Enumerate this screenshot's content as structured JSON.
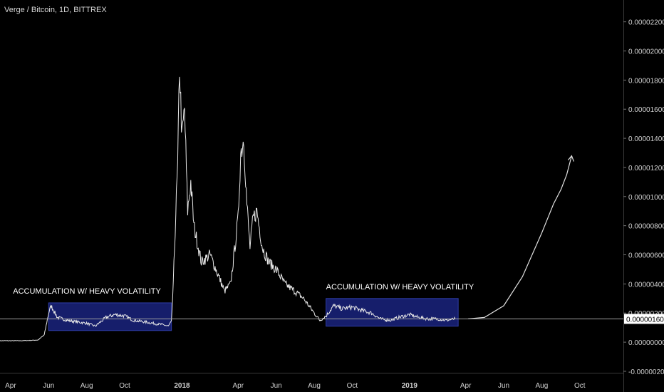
{
  "header": {
    "title": "Verge / Bitcoin, 1D, BITTREX"
  },
  "chart_data": {
    "type": "line",
    "title": "Verge / Bitcoin, 1D, BITTREX",
    "xlabel": "",
    "ylabel": "",
    "x_ticks": [
      "Apr",
      "Jun",
      "Aug",
      "Oct",
      "2018",
      "Apr",
      "Jun",
      "Aug",
      "Oct",
      "2019",
      "Apr",
      "Jun",
      "Aug",
      "Oct"
    ],
    "y_ticks": [
      "0.00002200",
      "0.00002000",
      "0.00001800",
      "0.00001600",
      "0.00001400",
      "0.00001200",
      "0.00001000",
      "0.00000800",
      "0.00000600",
      "0.00000400",
      "0.00000200",
      "0.00000000",
      "-0.00000200"
    ],
    "ylim": [
      -2.1e-06,
      2.35e-05
    ],
    "current_price_label": "0.00000160",
    "current_price": 1.6e-06,
    "grid": false,
    "series": [
      {
        "x": [
          "2017-03-15",
          "2017-04-01",
          "2017-04-15",
          "2017-05-01",
          "2017-05-15",
          "2017-05-25",
          "2017-06-01",
          "2017-06-05",
          "2017-06-15",
          "2017-07-01",
          "2017-07-15",
          "2017-08-01",
          "2017-08-15",
          "2017-09-01",
          "2017-09-15",
          "2017-10-01",
          "2017-10-15",
          "2017-11-01",
          "2017-11-15",
          "2017-12-01",
          "2017-12-10",
          "2017-12-15",
          "2017-12-18",
          "2017-12-22",
          "2017-12-25",
          "2017-12-28",
          "2018-01-01",
          "2018-01-05",
          "2018-01-10",
          "2018-01-15",
          "2018-01-20",
          "2018-02-01",
          "2018-02-15",
          "2018-03-01",
          "2018-03-10",
          "2018-03-20",
          "2018-04-01",
          "2018-04-05",
          "2018-04-10",
          "2018-04-15",
          "2018-04-20",
          "2018-04-25",
          "2018-05-01",
          "2018-05-10",
          "2018-05-20",
          "2018-06-01",
          "2018-06-15",
          "2018-07-01",
          "2018-07-15",
          "2018-08-01",
          "2018-08-10",
          "2018-08-20",
          "2018-09-01",
          "2018-09-15",
          "2018-10-01",
          "2018-10-15",
          "2018-11-01",
          "2018-11-15",
          "2018-12-01",
          "2018-12-15",
          "2019-01-01",
          "2019-01-15",
          "2019-02-01",
          "2019-02-15",
          "2019-03-01",
          "2019-03-15"
        ],
        "y": [
          1e-07,
          1e-07,
          1e-07,
          1.2e-07,
          1.5e-07,
          5e-07,
          2e-06,
          2.5e-06,
          1.7e-06,
          1.5e-06,
          1.4e-06,
          1.3e-06,
          1.1e-06,
          1.7e-06,
          1.9e-06,
          1.8e-06,
          1.5e-06,
          1.4e-06,
          1.3e-06,
          1.2e-06,
          1.1e-06,
          1.4e-06,
          4e-06,
          9e-06,
          1.2e-05,
          1.9e-05,
          1.4e-05,
          1.6e-05,
          9e-06,
          1.1e-05,
          8e-06,
          5.5e-06,
          6e-06,
          4.5e-06,
          3.5e-06,
          4e-06,
          8.5e-06,
          1.3e-05,
          1.4e-05,
          9.5e-06,
          6.5e-06,
          8.5e-06,
          9e-06,
          6.5e-06,
          5.5e-06,
          5e-06,
          4e-06,
          3.5e-06,
          3e-06,
          2e-06,
          1.5e-06,
          1.8e-06,
          2.5e-06,
          2.3e-06,
          2.4e-06,
          2.2e-06,
          2e-06,
          1.6e-06,
          1.5e-06,
          1.7e-06,
          1.9e-06,
          1.7e-06,
          1.6e-06,
          1.6e-06,
          1.5e-06,
          1.6e-06
        ]
      }
    ],
    "annotations": [
      {
        "text": "ACCUMULATION W/ HEAVY VOLATILITY",
        "x_start": "2017-06-01",
        "x_end": "2017-12-15",
        "y_low": 8e-07,
        "y_high": 2.7e-06
      },
      {
        "text": "ACCUMULATION W/ HEAVY VOLATILITY",
        "x_start": "2018-08-20",
        "x_end": "2019-03-20",
        "y_low": 1.1e-06,
        "y_high": 3e-06
      }
    ],
    "projection": {
      "x": [
        "2019-04-05",
        "2019-05-01",
        "2019-06-01",
        "2019-07-01",
        "2019-08-01",
        "2019-08-20",
        "2019-09-01",
        "2019-09-10",
        "2019-09-18"
      ],
      "y": [
        1.6e-06,
        1.7e-06,
        2.5e-06,
        4.5e-06,
        7.5e-06,
        9.5e-06,
        1.05e-05,
        1.15e-05,
        1.28e-05
      ]
    },
    "colors": {
      "background": "#000000",
      "line": "#e8e8e8",
      "box_fill": "#1a237e",
      "price_line": "#9e9e9e"
    }
  }
}
